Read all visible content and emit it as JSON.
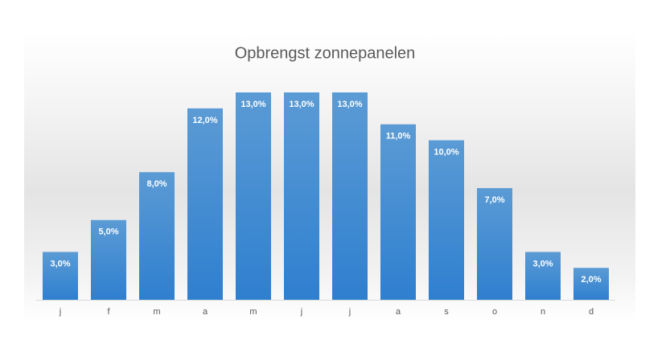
{
  "chart_data": {
    "type": "bar",
    "title": "Opbrengst zonnepanelen",
    "categories": [
      "j",
      "f",
      "m",
      "a",
      "m",
      "j",
      "j",
      "a",
      "s",
      "o",
      "n",
      "d"
    ],
    "values": [
      3,
      5,
      8,
      12,
      13,
      13,
      13,
      11,
      10,
      7,
      3,
      2
    ],
    "value_labels": [
      "3,0%",
      "5,0%",
      "8,0%",
      "12,0%",
      "13,0%",
      "13,0%",
      "13,0%",
      "11,0%",
      "10,0%",
      "7,0%",
      "3,0%",
      "2,0%"
    ],
    "color": "#4a8fd4"
  }
}
